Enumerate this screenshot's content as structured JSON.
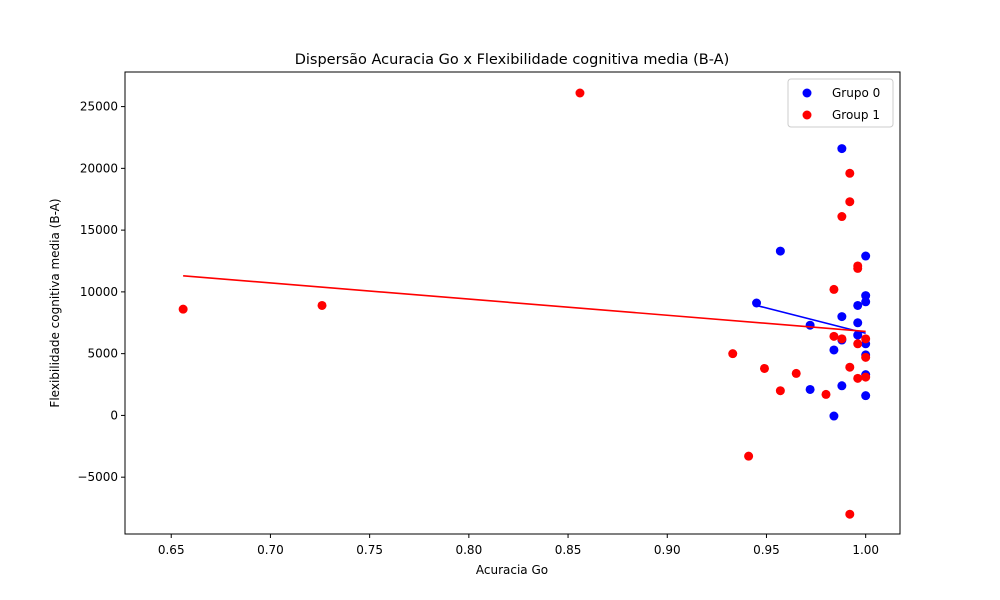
{
  "chart_data": {
    "type": "scatter",
    "title": "Dispersão Acuracia Go x Flexibilidade cognitiva media (B-A)",
    "xlabel": "Acuracia Go",
    "ylabel": "Flexibilidade cognitiva media (B-A)",
    "xlim": [
      0.6267,
      1.0173
    ],
    "ylim": [
      -9600,
      27800
    ],
    "xticks": [
      0.65,
      0.7,
      0.75,
      0.8,
      0.85,
      0.9,
      0.95,
      1.0
    ],
    "xtick_labels": [
      "0.65",
      "0.70",
      "0.75",
      "0.80",
      "0.85",
      "0.90",
      "0.95",
      "1.00"
    ],
    "yticks": [
      -5000,
      0,
      5000,
      10000,
      15000,
      20000,
      25000
    ],
    "ytick_labels": [
      "−5000",
      "0",
      "5000",
      "10000",
      "15000",
      "20000",
      "25000"
    ],
    "grid": false,
    "legend_position": "top-right",
    "series": [
      {
        "name": "Grupo 0",
        "color": "#0000ff",
        "points": [
          [
            0.945,
            9100
          ],
          [
            0.957,
            13300
          ],
          [
            0.972,
            7300
          ],
          [
            0.972,
            2100
          ],
          [
            0.984,
            5300
          ],
          [
            0.984,
            -50
          ],
          [
            0.988,
            21600
          ],
          [
            0.988,
            8000
          ],
          [
            0.988,
            6100
          ],
          [
            0.988,
            2400
          ],
          [
            0.996,
            8900
          ],
          [
            0.996,
            7500
          ],
          [
            0.996,
            6500
          ],
          [
            1.0,
            12900
          ],
          [
            1.0,
            9700
          ],
          [
            1.0,
            9200
          ],
          [
            1.0,
            5800
          ],
          [
            1.0,
            4900
          ],
          [
            1.0,
            3300
          ],
          [
            1.0,
            1600
          ]
        ],
        "trend": {
          "x": [
            0.945,
            1.0
          ],
          "y": [
            8900,
            6650
          ]
        }
      },
      {
        "name": "Group 1",
        "color": "#ff0000",
        "points": [
          [
            0.656,
            8600
          ],
          [
            0.726,
            8900
          ],
          [
            0.856,
            26100
          ],
          [
            0.933,
            5000
          ],
          [
            0.941,
            -3300
          ],
          [
            0.949,
            3800
          ],
          [
            0.957,
            2000
          ],
          [
            0.965,
            3400
          ],
          [
            0.98,
            1700
          ],
          [
            0.984,
            10200
          ],
          [
            0.984,
            6400
          ],
          [
            0.988,
            16100
          ],
          [
            0.988,
            6200
          ],
          [
            0.992,
            19600
          ],
          [
            0.992,
            17300
          ],
          [
            0.992,
            3900
          ],
          [
            0.992,
            -8000
          ],
          [
            0.996,
            12100
          ],
          [
            0.996,
            11900
          ],
          [
            0.996,
            5800
          ],
          [
            0.996,
            3000
          ],
          [
            1.0,
            6200
          ],
          [
            1.0,
            4700
          ],
          [
            1.0,
            3100
          ]
        ],
        "trend": {
          "x": [
            0.656,
            1.0
          ],
          "y": [
            11300,
            6800
          ]
        }
      }
    ]
  }
}
